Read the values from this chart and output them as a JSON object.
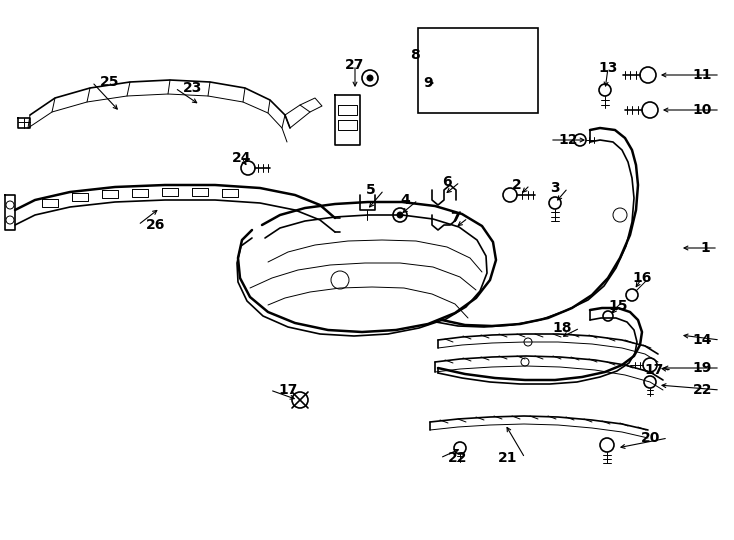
{
  "bg_color": "#ffffff",
  "line_color": "#000000",
  "fig_width": 7.34,
  "fig_height": 5.4,
  "dpi": 100,
  "xlim": [
    0,
    734
  ],
  "ylim": [
    0,
    540
  ]
}
